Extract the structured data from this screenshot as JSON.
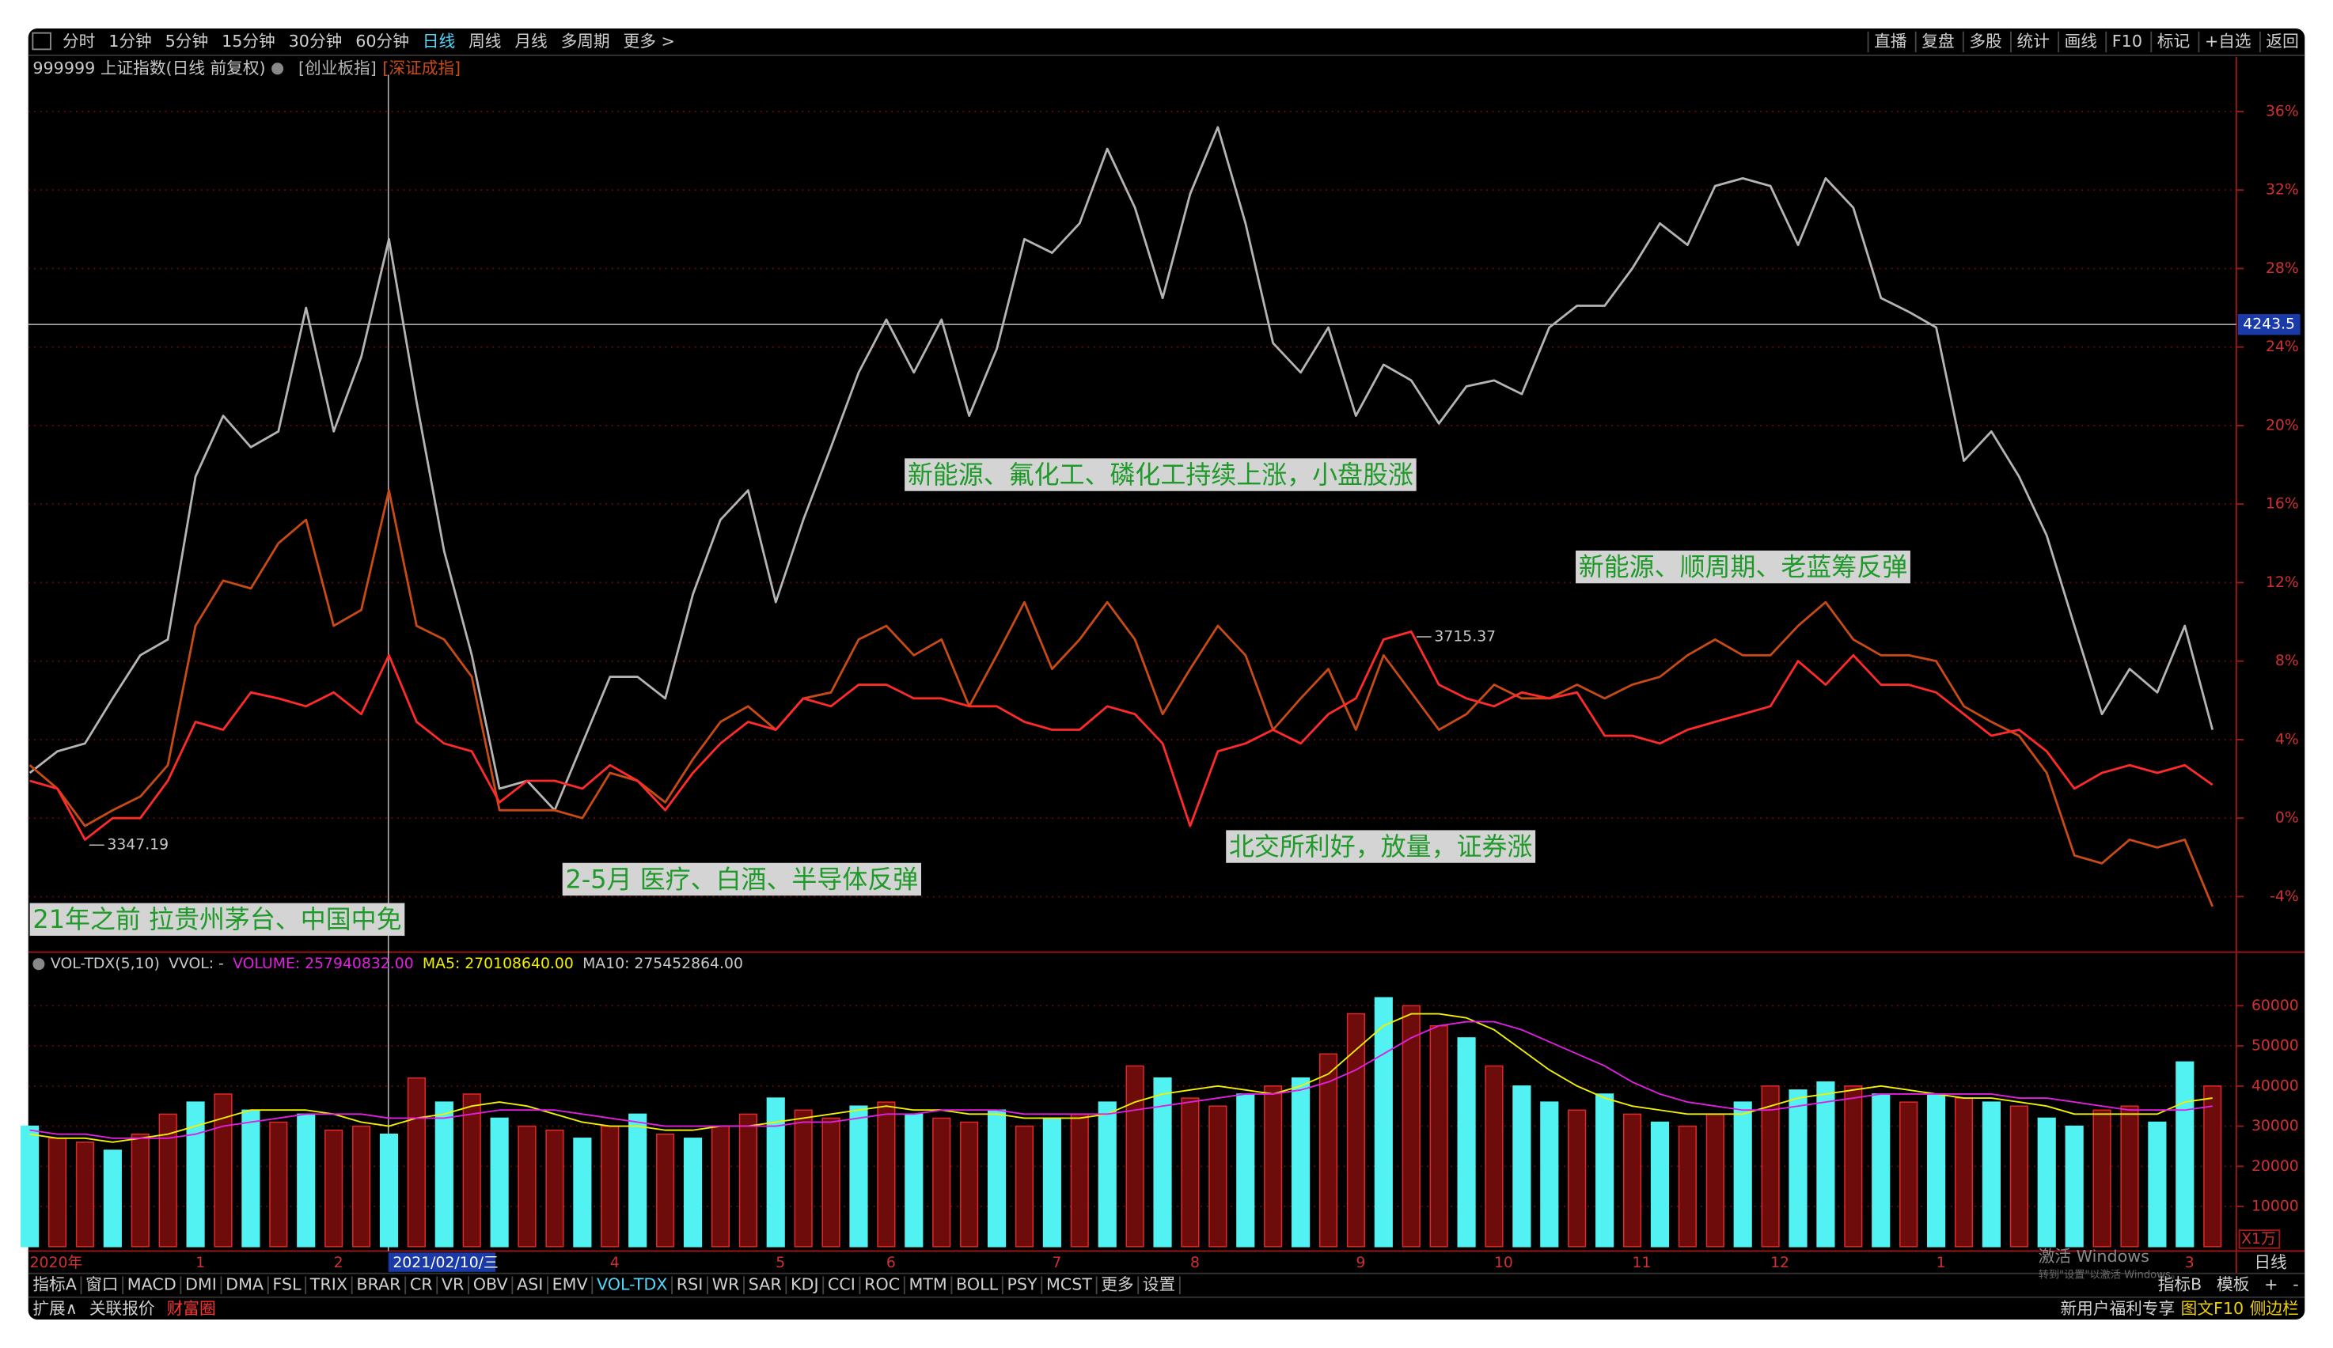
{
  "toolbar": {
    "left": [
      "分时",
      "1分钟",
      "5分钟",
      "15分钟",
      "30分钟",
      "60分钟",
      "日线",
      "周线",
      "月线",
      "多周期",
      "更多 >"
    ],
    "right": [
      "直播",
      "复盘",
      "多股",
      "统计",
      "画线",
      "F10",
      "标记",
      "+自选",
      "返回"
    ]
  },
  "chart_data": [
    {
      "type": "line",
      "categories": [
        "2020年",
        null,
        null,
        null,
        null,
        null,
        "1",
        null,
        null,
        null,
        null,
        "2",
        null,
        null,
        null,
        null,
        null,
        null,
        null,
        null,
        null,
        "4",
        null,
        null,
        null,
        null,
        null,
        "5",
        null,
        null,
        null,
        "6",
        null,
        null,
        null,
        null,
        null,
        "7",
        null,
        null,
        null,
        null,
        "8",
        null,
        null,
        null,
        null,
        null,
        "9",
        null,
        null,
        null,
        null,
        "10",
        null,
        null,
        null,
        null,
        "11",
        null,
        null,
        null,
        null,
        "12",
        null,
        null,
        null,
        null,
        null,
        "1",
        null,
        null,
        null,
        null,
        null,
        null,
        null,
        null,
        "3",
        null
      ],
      "series": [
        {
          "name": "999999 上证指数(日线 前复权)",
          "color": "#ff2a2a",
          "values": [
            1.9,
            1.5,
            -1.1,
            0,
            0,
            1.9,
            4.9,
            4.5,
            6.4,
            6.1,
            5.7,
            6.4,
            5.3,
            8.3,
            4.9,
            3.8,
            3.4,
            0.8,
            1.9,
            1.9,
            1.5,
            2.7,
            1.9,
            0.4,
            2.3,
            3.8,
            4.9,
            4.5,
            6.1,
            5.7,
            6.8,
            6.8,
            6.1,
            6.1,
            5.7,
            5.7,
            4.9,
            4.5,
            4.5,
            5.7,
            5.3,
            3.8,
            -0.4,
            3.4,
            3.8,
            4.5,
            3.8,
            5.3,
            6.1,
            9.1,
            9.5,
            6.8,
            6.1,
            5.7,
            6.4,
            6.1,
            6.4,
            4.2,
            4.2,
            3.8,
            4.5,
            4.9,
            5.3,
            5.7,
            8,
            6.8,
            8.3,
            6.8,
            6.8,
            6.4,
            5.3,
            4.2,
            4.5,
            3.4,
            1.5,
            2.3,
            2.7,
            2.3,
            2.7,
            1.7
          ]
        },
        {
          "name": "[创业板指]",
          "color": "#b4b4b4",
          "values": [
            2.3,
            3.4,
            3.8,
            6.1,
            8.3,
            9.1,
            17.4,
            20.5,
            18.9,
            19.7,
            26,
            19.7,
            23.5,
            29.5,
            21.2,
            13.6,
            8.3,
            1.5,
            1.9,
            0.4,
            3.8,
            7.2,
            7.2,
            6.1,
            11.4,
            15.2,
            16.7,
            11,
            15.2,
            18.9,
            22.7,
            25.4,
            22.7,
            25.4,
            20.5,
            23.9,
            29.5,
            28.8,
            30.3,
            34.1,
            31.1,
            26.5,
            31.8,
            35.2,
            30.3,
            24.2,
            22.7,
            25,
            20.5,
            23.1,
            22.3,
            20.1,
            22,
            22.3,
            21.6,
            25,
            26.1,
            26.1,
            28,
            30.3,
            29.2,
            32.2,
            32.6,
            32.2,
            29.2,
            32.6,
            31.1,
            26.5,
            25.8,
            25,
            18.2,
            19.7,
            17.4,
            14.4,
            9.8,
            5.3,
            7.6,
            6.4,
            9.8,
            4.5
          ]
        },
        {
          "name": "[深证成指]",
          "color": "#c84a14",
          "values": [
            2.7,
            1.5,
            -0.4,
            0.4,
            1.1,
            2.7,
            9.8,
            12.1,
            11.7,
            14,
            15.2,
            9.8,
            10.6,
            16.7,
            9.8,
            9.1,
            7.2,
            0.4,
            0.4,
            0.4,
            0,
            2.3,
            1.9,
            0.8,
            3,
            4.9,
            5.7,
            4.5,
            6.1,
            6.4,
            9.1,
            9.8,
            8.3,
            9.1,
            5.7,
            8.3,
            11,
            7.6,
            9.1,
            11,
            9.1,
            5.3,
            7.6,
            9.8,
            8.3,
            4.5,
            6.1,
            7.6,
            4.5,
            8.3,
            6.4,
            4.5,
            5.3,
            6.8,
            6.1,
            6.1,
            6.8,
            6.1,
            6.8,
            7.2,
            8.3,
            9.1,
            8.3,
            8.3,
            9.8,
            11,
            9.1,
            8.3,
            8.3,
            8,
            5.7,
            4.9,
            4.2,
            2.3,
            -1.9,
            -2.3,
            -1.1,
            -1.5,
            -1.1,
            -4.5
          ]
        }
      ],
      "ylim": [
        -6.6,
        37.5
      ],
      "yticks": [
        {
          "value": -4,
          "label": "-4%"
        },
        {
          "value": 0,
          "label": "0%"
        },
        {
          "value": 4,
          "label": "4%"
        },
        {
          "value": 8,
          "label": "8%"
        },
        {
          "value": 12,
          "label": "12%"
        },
        {
          "value": 16,
          "label": "16%"
        },
        {
          "value": 20,
          "label": "20%"
        },
        {
          "value": 24,
          "label": "24%"
        },
        {
          "value": 28,
          "label": "28%"
        },
        {
          "value": 32,
          "label": "32%"
        },
        {
          "value": 36,
          "label": "36%"
        }
      ],
      "grid": true,
      "annotations": [
        "新能源、氟化工、磷化工持续上涨，小盘股涨",
        "新能源、顺周期、老蓝筹反弹",
        "北交所利好，放量，证券涨",
        "2-5月 医疗、白酒、半导体反弹",
        "21年之前 拉贵州茅台、中国中免"
      ],
      "point_labels": [
        "3347.19",
        "3715.37"
      ],
      "crosshair": {
        "x_label": "2021/02/10/三",
        "y_label": "4243.5"
      }
    },
    {
      "type": "bar",
      "header": [
        "VOL-TDX(5,10)",
        "VVOL: -",
        "VOLUME: 257940832.00",
        "MA5: 270108640.00",
        "MA10: 275452864.00"
      ],
      "values": [
        30000,
        27000,
        26000,
        24000,
        28000,
        33000,
        36000,
        38000,
        34000,
        31000,
        33000,
        29000,
        30000,
        28000,
        42000,
        36000,
        38000,
        32000,
        30000,
        29000,
        27000,
        30000,
        33000,
        28000,
        27000,
        30000,
        33000,
        37000,
        34000,
        32000,
        35000,
        36000,
        33000,
        32000,
        31000,
        34000,
        30000,
        32000,
        33000,
        36000,
        45000,
        42000,
        37000,
        35000,
        38000,
        40000,
        42000,
        48000,
        58000,
        62000,
        60000,
        55000,
        52000,
        45000,
        40000,
        36000,
        34000,
        38000,
        33000,
        31000,
        30000,
        33000,
        36000,
        40000,
        39000,
        41000,
        40000,
        38000,
        36000,
        38000,
        37000,
        36000,
        35000,
        32000,
        30000,
        34000,
        35000,
        31000,
        46000,
        40000
      ],
      "up": [
        false,
        true,
        true,
        false,
        true,
        true,
        false,
        true,
        false,
        true,
        false,
        true,
        true,
        false,
        true,
        false,
        true,
        false,
        true,
        true,
        false,
        true,
        false,
        true,
        false,
        true,
        true,
        false,
        true,
        true,
        false,
        true,
        false,
        true,
        true,
        false,
        true,
        false,
        true,
        false,
        true,
        false,
        true,
        true,
        false,
        true,
        false,
        true,
        true,
        false,
        true,
        true,
        false,
        true,
        false,
        false,
        true,
        false,
        true,
        false,
        true,
        true,
        false,
        true,
        false,
        false,
        true,
        false,
        true,
        false,
        true,
        false,
        true,
        false,
        false,
        true,
        true,
        false,
        false,
        true
      ],
      "colors": {
        "up": "#e02828",
        "up_fill": "#6e0c0c",
        "down": "#52f2f2"
      },
      "ma_lines": [
        {
          "color": "#f0f000",
          "values": [
            28000,
            27000,
            27000,
            26000,
            27000,
            28000,
            30000,
            32000,
            34000,
            34000,
            34000,
            33000,
            31000,
            30000,
            32000,
            33000,
            35000,
            36000,
            35000,
            33000,
            31000,
            30000,
            30000,
            29000,
            29000,
            30000,
            30000,
            31000,
            32000,
            33000,
            34000,
            35000,
            34000,
            34000,
            33000,
            33000,
            32000,
            32000,
            32000,
            33000,
            36000,
            38000,
            39000,
            40000,
            39000,
            38000,
            40000,
            43000,
            49000,
            55000,
            58000,
            58000,
            57000,
            54000,
            49000,
            44000,
            40000,
            37000,
            35000,
            34000,
            33000,
            33000,
            33000,
            35000,
            37000,
            38000,
            39000,
            40000,
            39000,
            38000,
            37000,
            37000,
            36000,
            35000,
            33000,
            33000,
            33000,
            33000,
            36000,
            37000
          ]
        },
        {
          "color": "#e020e0",
          "values": [
            29000,
            28000,
            28000,
            27000,
            27000,
            27000,
            28000,
            30000,
            31000,
            32000,
            33000,
            33000,
            33000,
            32000,
            32000,
            32000,
            33000,
            34000,
            34000,
            34000,
            33000,
            32000,
            31000,
            30000,
            30000,
            30000,
            30000,
            30000,
            31000,
            31000,
            32000,
            33000,
            33000,
            34000,
            34000,
            34000,
            33000,
            33000,
            33000,
            33000,
            34000,
            35000,
            36000,
            37000,
            38000,
            38000,
            39000,
            41000,
            44000,
            48000,
            52000,
            55000,
            56000,
            56000,
            54000,
            51000,
            48000,
            45000,
            41000,
            38000,
            36000,
            35000,
            34000,
            34000,
            35000,
            36000,
            37000,
            38000,
            38000,
            38000,
            38000,
            38000,
            37000,
            37000,
            36000,
            35000,
            34000,
            34000,
            34000,
            35000
          ]
        }
      ],
      "ylim": [
        0,
        67800
      ],
      "yticks": [
        10000,
        20000,
        30000,
        40000,
        50000,
        60000
      ],
      "grid": true,
      "unit": "X1万",
      "period": "日线"
    }
  ],
  "indicator_tabs": [
    "指标A",
    "窗口",
    "MACD",
    "DMI",
    "DMA",
    "FSL",
    "TRIX",
    "BRAR",
    "CR",
    "VR",
    "OBV",
    "ASI",
    "EMV",
    "VOL-TDX",
    "RSI",
    "WR",
    "SAR",
    "KDJ",
    "CCI",
    "ROC",
    "MTM",
    "BOLL",
    "PSY",
    "MCST",
    "更多",
    "设置"
  ],
  "indicator_tabs_right": [
    "指标B",
    "模板",
    "+",
    "-"
  ],
  "status_left": [
    "扩展∧",
    "关联报价",
    "财富圈"
  ],
  "status_right": [
    "新用户福利专享",
    "图文F10",
    "侧边栏"
  ],
  "watermark": [
    "激活 Windows",
    "转到\"设置\"以激活 Windows。"
  ]
}
